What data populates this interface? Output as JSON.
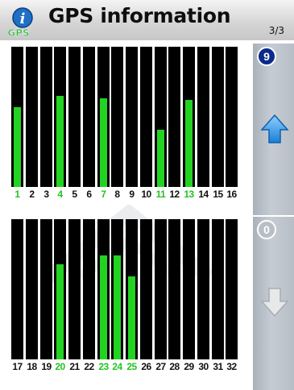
{
  "header": {
    "title": "GPS information",
    "page_indicator": "3/3",
    "app_icon": "gps-info-icon"
  },
  "sidebar": {
    "top_count": "9",
    "bottom_count": "0",
    "up_icon": "arrow-up-icon",
    "down_icon": "arrow-down-icon"
  },
  "colors": {
    "signal": "#22d322",
    "bar": "#000000",
    "active_label": "#22c422",
    "accent": "#1a7fd6"
  },
  "satellites_top": [
    {
      "id": "1",
      "signal": 0.57,
      "active": true
    },
    {
      "id": "2",
      "signal": 0,
      "active": false
    },
    {
      "id": "3",
      "signal": 0,
      "active": false
    },
    {
      "id": "4",
      "signal": 0.65,
      "active": true
    },
    {
      "id": "5",
      "signal": 0,
      "active": false
    },
    {
      "id": "6",
      "signal": 0,
      "active": false
    },
    {
      "id": "7",
      "signal": 0.63,
      "active": true
    },
    {
      "id": "8",
      "signal": 0,
      "active": false
    },
    {
      "id": "9",
      "signal": 0,
      "active": false
    },
    {
      "id": "10",
      "signal": 0,
      "active": false
    },
    {
      "id": "11",
      "signal": 0.41,
      "active": true
    },
    {
      "id": "12",
      "signal": 0,
      "active": false
    },
    {
      "id": "13",
      "signal": 0.62,
      "active": true
    },
    {
      "id": "14",
      "signal": 0,
      "active": false
    },
    {
      "id": "15",
      "signal": 0,
      "active": false
    },
    {
      "id": "16",
      "signal": 0,
      "active": false
    }
  ],
  "satellites_bottom": [
    {
      "id": "17",
      "signal": 0,
      "active": false
    },
    {
      "id": "18",
      "signal": 0,
      "active": false
    },
    {
      "id": "19",
      "signal": 0,
      "active": false
    },
    {
      "id": "20",
      "signal": 0.68,
      "active": true
    },
    {
      "id": "21",
      "signal": 0,
      "active": false
    },
    {
      "id": "22",
      "signal": 0,
      "active": false
    },
    {
      "id": "23",
      "signal": 0.74,
      "active": true
    },
    {
      "id": "24",
      "signal": 0.74,
      "active": true
    },
    {
      "id": "25",
      "signal": 0.59,
      "active": true
    },
    {
      "id": "26",
      "signal": 0,
      "active": false
    },
    {
      "id": "27",
      "signal": 0,
      "active": false
    },
    {
      "id": "28",
      "signal": 0,
      "active": false
    },
    {
      "id": "29",
      "signal": 0,
      "active": false
    },
    {
      "id": "30",
      "signal": 0,
      "active": false
    },
    {
      "id": "31",
      "signal": 0,
      "active": false
    },
    {
      "id": "32",
      "signal": 0,
      "active": false
    }
  ]
}
